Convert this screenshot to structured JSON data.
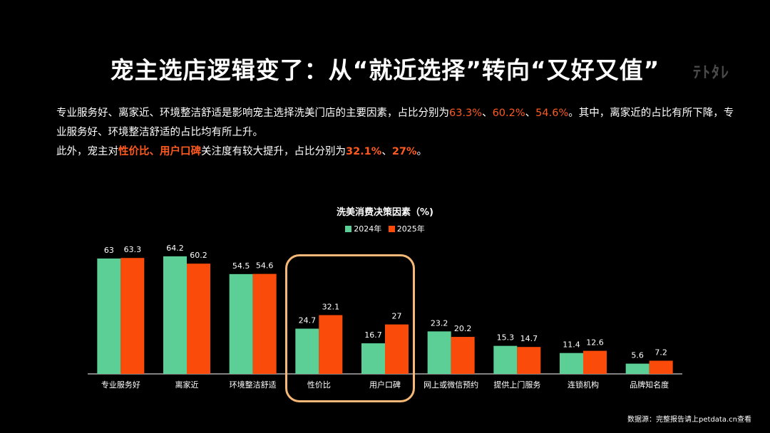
{
  "header": {
    "title": "宠主选店逻辑变了：从“就近选择”转向“又好又值”",
    "watermark": "ﾃﾄﾀﾚ"
  },
  "paragraph1": {
    "text_a": "专业服务好、离家近、环境整洁舒适是影响宠主选择洗美门店的主要因素，占比分别为",
    "val_1": "63.3%",
    "sep_1": "、",
    "val_2": "60.2%",
    "sep_2": "、",
    "val_3": "54.6%",
    "text_b": "。其中，离家近的占比有所下降，专业服务好、环境整洁舒适的占比均有所上升。"
  },
  "paragraph2": {
    "text_a": "此外，宠主对",
    "hl_1": "性价比",
    "sep_1": "、",
    "hl_2": "用户口碑",
    "text_b": "关注度有较大提升，占比分别为",
    "val_1": "32.1%",
    "sep_2": "、",
    "val_2": "27%",
    "text_c": "。"
  },
  "colors": {
    "series_2024": "#5ccf97",
    "series_2025": "#fb4b0a",
    "highlight_box": "#f6b877",
    "accent": "#ff5a1f"
  },
  "chart_data": {
    "type": "bar",
    "title": "洗美消费决策因素（%)",
    "categories": [
      "专业服务好",
      "离家近",
      "环境整洁舒适",
      "性价比",
      "用户口碑",
      "网上或微信预约",
      "提供上门服务",
      "连锁机构",
      "品牌知名度"
    ],
    "series": [
      {
        "name": "2024年",
        "values": [
          63,
          64.2,
          54.5,
          24.7,
          16.7,
          23.2,
          15.3,
          11.4,
          5.6
        ]
      },
      {
        "name": "2025年",
        "values": [
          63.3,
          60.2,
          54.6,
          32.1,
          27,
          20.2,
          14.7,
          12.6,
          7.2
        ]
      }
    ],
    "ylim": [
      0,
      70
    ],
    "grid": false,
    "legend_position": "top-center",
    "highlighted_categories": [
      "性价比",
      "用户口碑"
    ]
  },
  "footer": {
    "source": "数据源：完整报告请上petdata.cn查看"
  }
}
